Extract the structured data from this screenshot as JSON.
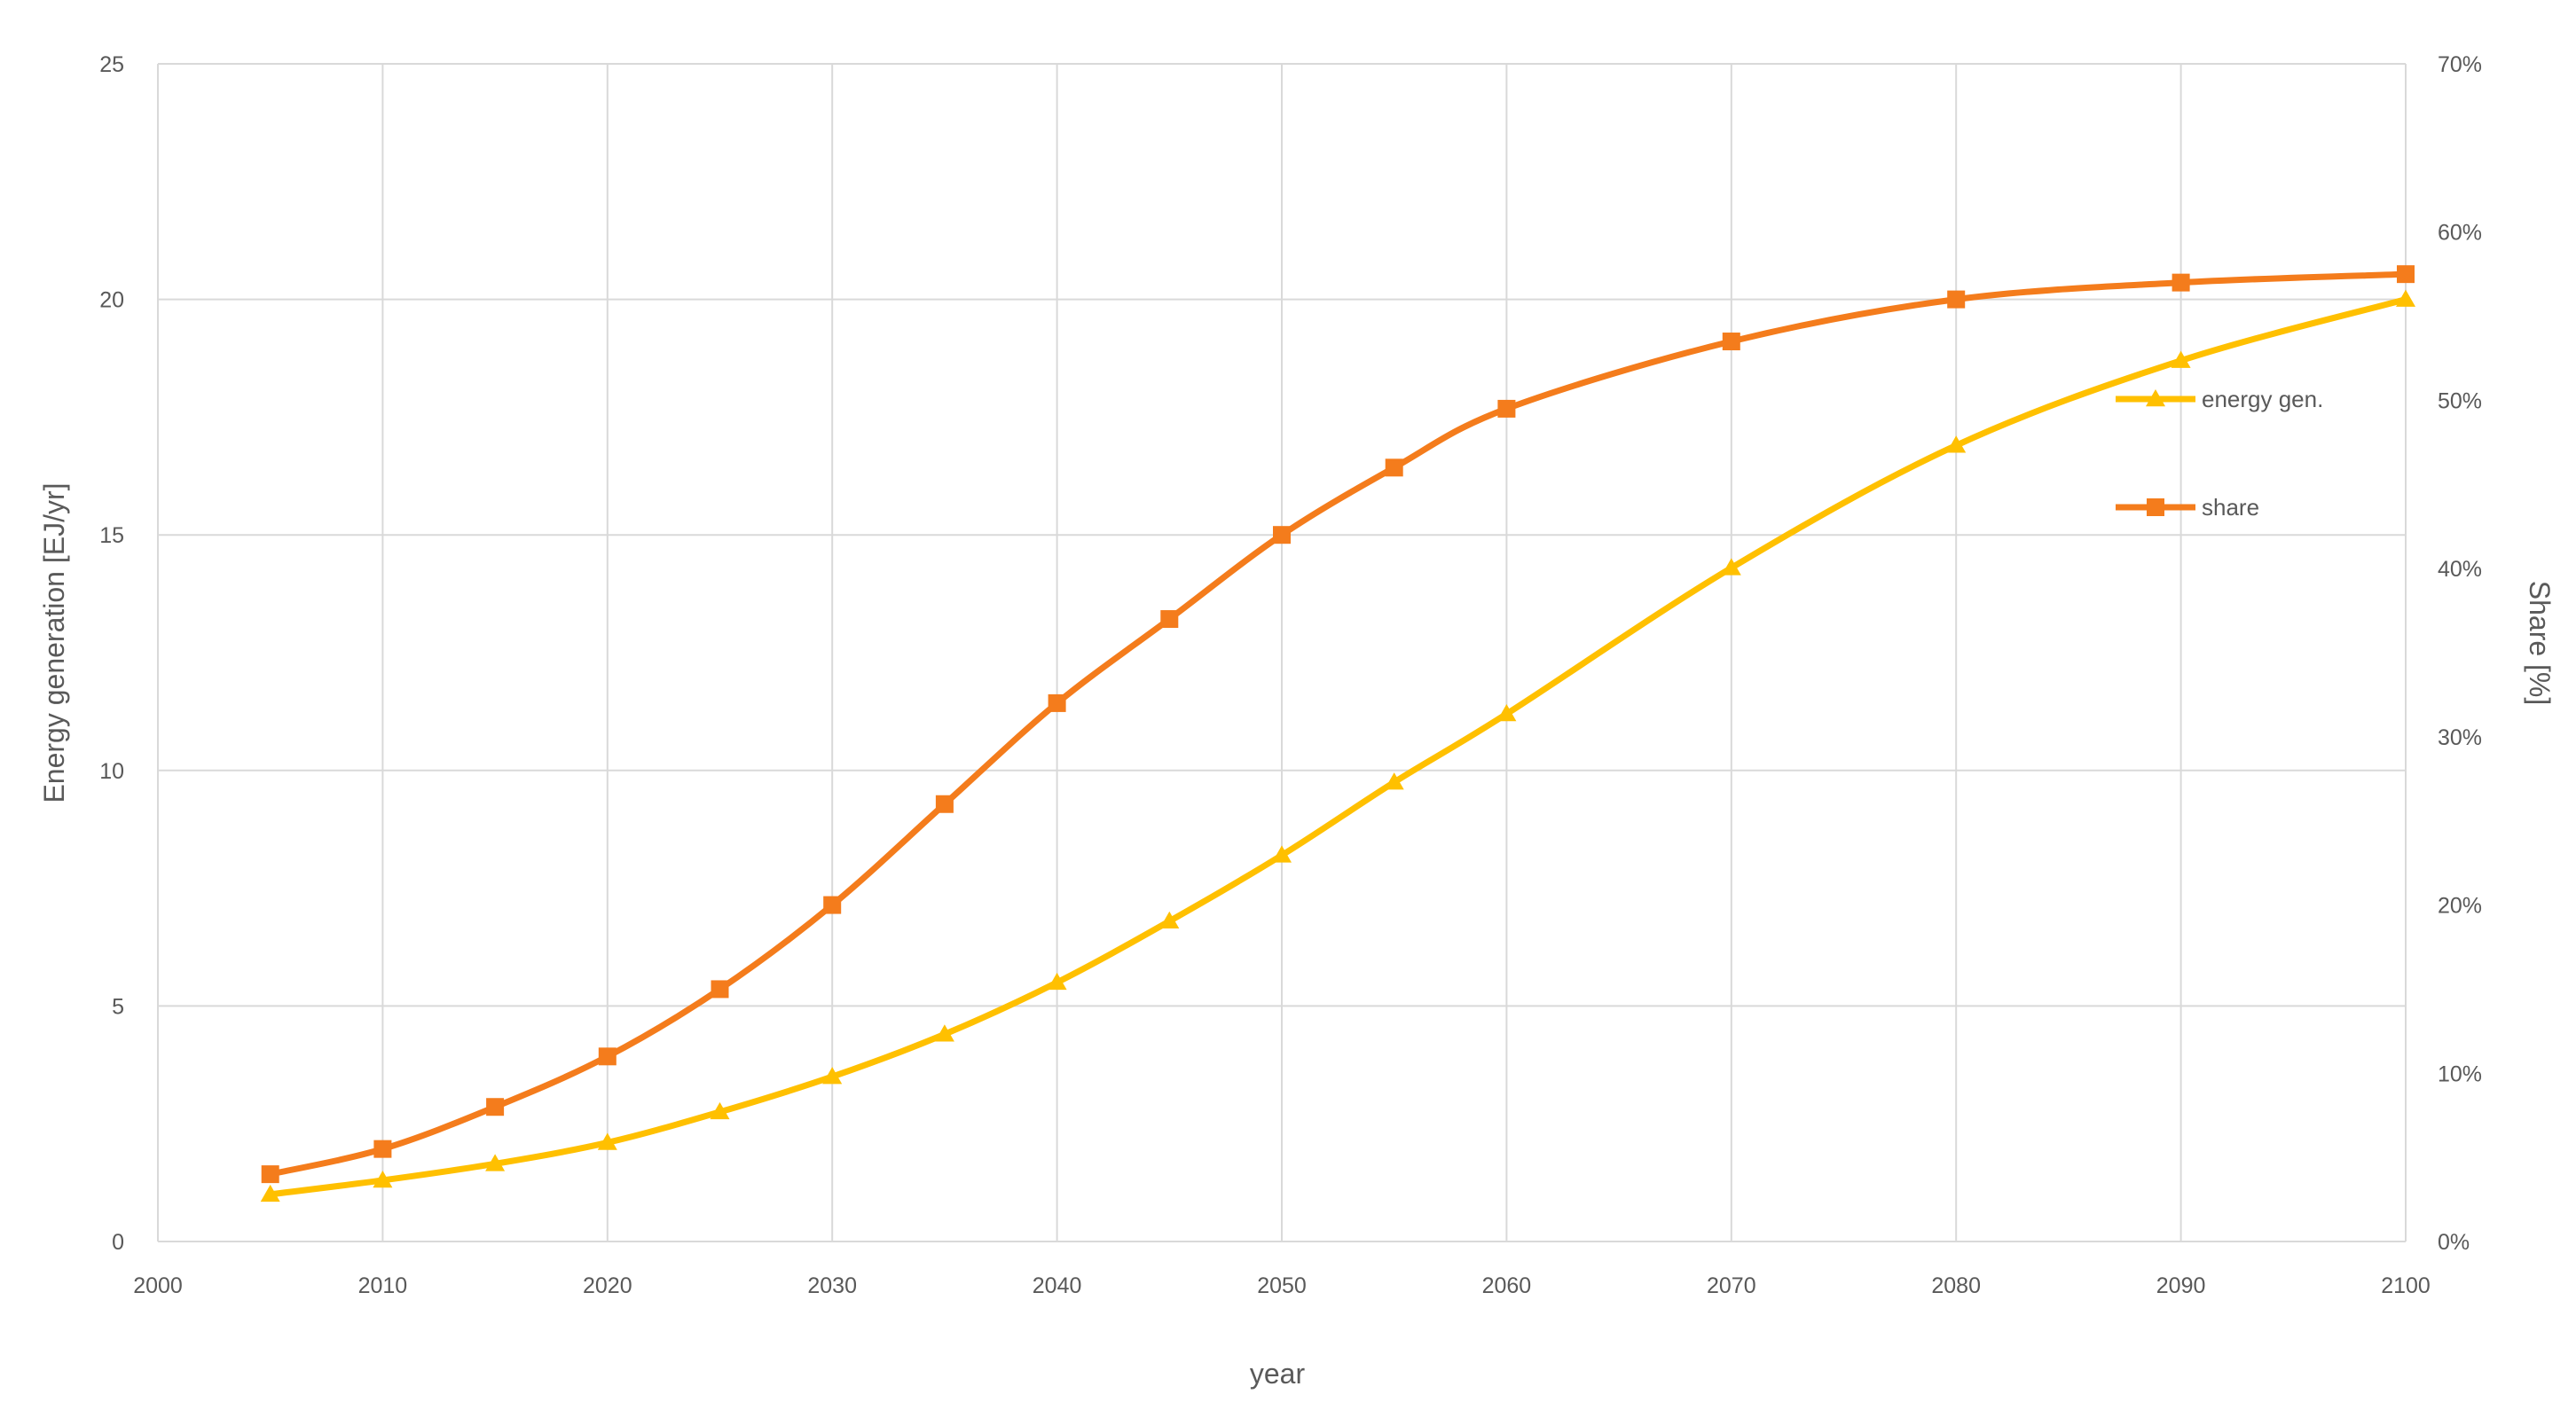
{
  "chart_data": {
    "type": "line",
    "title": "",
    "xlabel": "year",
    "ylabel": "Energy generation [EJ/yr]",
    "y2label": "Share [%]",
    "xlim": [
      2000,
      2100
    ],
    "ylim": [
      0,
      25
    ],
    "y2lim": [
      0,
      0.7
    ],
    "xticks": [
      "2000",
      "2010",
      "2020",
      "2030",
      "2040",
      "2050",
      "2060",
      "2070",
      "2080",
      "2090",
      "2100"
    ],
    "yticks": [
      "0",
      "5",
      "10",
      "15",
      "20",
      "25"
    ],
    "y2ticks": [
      "0%",
      "10%",
      "20%",
      "30%",
      "40%",
      "50%",
      "60%",
      "70%"
    ],
    "grid": true,
    "legend_position": "right",
    "series": [
      {
        "name": "energy gen.",
        "axis": "left",
        "color": "#FFC000",
        "marker": "triangle",
        "x": [
          2005,
          2010,
          2015,
          2020,
          2025,
          2030,
          2035,
          2040,
          2045,
          2050,
          2055,
          2060,
          2070,
          2080,
          2090,
          2100
        ],
        "values": [
          1.0,
          1.3,
          1.65,
          2.1,
          2.75,
          3.5,
          4.4,
          5.5,
          6.8,
          8.2,
          9.75,
          11.2,
          14.3,
          16.9,
          18.7,
          20.0
        ]
      },
      {
        "name": "share",
        "axis": "right",
        "color": "#F47C1C",
        "marker": "square",
        "x": [
          2005,
          2010,
          2015,
          2020,
          2025,
          2030,
          2035,
          2040,
          2045,
          2050,
          2055,
          2060,
          2070,
          2080,
          2090,
          2100
        ],
        "values": [
          0.04,
          0.055,
          0.08,
          0.11,
          0.15,
          0.2,
          0.26,
          0.32,
          0.37,
          0.42,
          0.46,
          0.495,
          0.535,
          0.56,
          0.57,
          0.575
        ]
      }
    ]
  }
}
